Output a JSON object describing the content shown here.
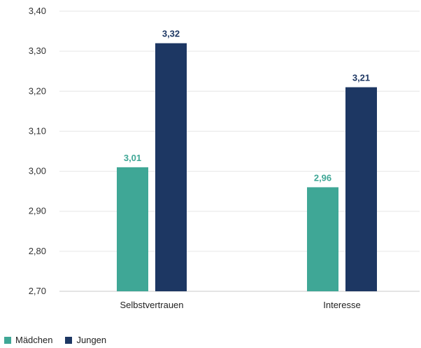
{
  "chart_data": {
    "type": "bar",
    "categories": [
      "Selbstvertrauen",
      "Interesse"
    ],
    "series": [
      {
        "name": "Mädchen",
        "values": [
          3.01,
          2.96
        ],
        "color": "#3fa796",
        "labels": [
          "3,01",
          "2,96"
        ]
      },
      {
        "name": "Jungen",
        "values": [
          3.32,
          3.21
        ],
        "color": "#1d3763",
        "labels": [
          "3,32",
          "3,21"
        ]
      }
    ],
    "ylim": [
      2.7,
      3.4
    ],
    "yticks": [
      2.7,
      2.8,
      2.9,
      3.0,
      3.1,
      3.2,
      3.3,
      3.4
    ],
    "ytick_labels": [
      "2,70",
      "2,80",
      "2,90",
      "3,00",
      "3,10",
      "3,20",
      "3,30",
      "3,40"
    ],
    "grid": true,
    "legend_position": "bottom-left"
  }
}
